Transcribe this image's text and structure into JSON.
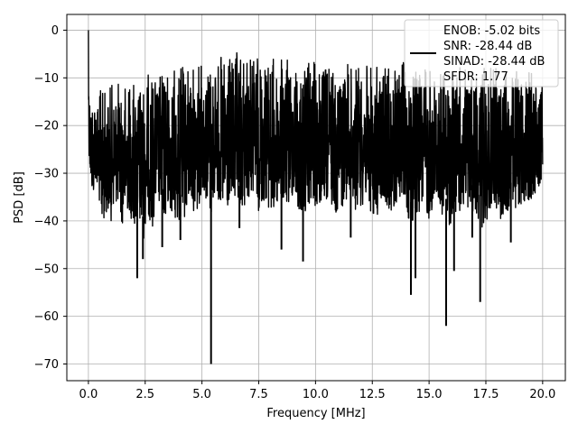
{
  "chart_data": {
    "type": "line",
    "title": "",
    "xlabel": "Frequency [MHz]",
    "ylabel": "PSD [dB]",
    "xlim": [
      -0.95,
      21.0
    ],
    "ylim": [
      -73.5,
      3.3
    ],
    "x_ticks": [
      0.0,
      2.5,
      5.0,
      7.5,
      10.0,
      12.5,
      15.0,
      17.5,
      20.0
    ],
    "x_tick_labels": [
      "0.0",
      "2.5",
      "5.0",
      "7.5",
      "10.0",
      "12.5",
      "15.0",
      "17.5",
      "20.0"
    ],
    "y_ticks": [
      0,
      -10,
      -20,
      -30,
      -40,
      -50,
      -60,
      -70
    ],
    "y_tick_labels": [
      "0",
      "−10",
      "−20",
      "−30",
      "−40",
      "−50",
      "−60",
      "−70"
    ],
    "grid": true,
    "legend_position": "top-right",
    "legend": [
      "ENOB: -5.02 bits",
      "SNR: -28.44 dB",
      "SINAD: -28.44 dB",
      "SFDR: 1.77"
    ],
    "series": [
      {
        "color": "#000000",
        "x": [
          0.0,
          0.02,
          0.05,
          0.1,
          0.2,
          0.3,
          0.4,
          0.5,
          0.6,
          0.8,
          1.0,
          1.2,
          1.5,
          1.8,
          2.0,
          2.2,
          2.4,
          2.6,
          2.8,
          3.0,
          3.3,
          3.6,
          3.9,
          4.2,
          4.5,
          4.8,
          5.0,
          5.2,
          5.4,
          5.6,
          5.8,
          6.0,
          6.3,
          6.6,
          6.9,
          7.2,
          7.5,
          7.8,
          8.1,
          8.4,
          8.7,
          9.0,
          9.4,
          9.8,
          10.2,
          10.6,
          11.0,
          11.4,
          11.8,
          12.2,
          12.6,
          13.0,
          13.4,
          13.8,
          14.2,
          14.6,
          15.0,
          15.4,
          15.8,
          16.2,
          16.6,
          17.0,
          17.4,
          17.8,
          18.2,
          18.6,
          19.0,
          19.4,
          19.8,
          20.0
        ],
        "upper": [
          0.0,
          -9.0,
          -11.0,
          -12.0,
          -13.5,
          -12.0,
          -13.0,
          -12.5,
          -11.5,
          -12.5,
          -11.0,
          -11.0,
          -10.0,
          -10.5,
          -9.5,
          -10.0,
          -10.5,
          -9.0,
          -8.5,
          -9.5,
          -8.0,
          -7.5,
          -8.0,
          -7.0,
          -6.5,
          -7.0,
          -6.5,
          -6.0,
          -5.5,
          -6.0,
          -5.5,
          -5.0,
          -5.0,
          -4.5,
          -3.5,
          -5.0,
          -4.5,
          -5.5,
          -5.0,
          -6.0,
          -6.0,
          -5.5,
          -6.5,
          -6.0,
          -7.0,
          -7.0,
          -6.5,
          -7.0,
          -6.5,
          -7.0,
          -7.5,
          -7.0,
          -7.0,
          -6.5,
          -7.0,
          -7.5,
          -7.0,
          -8.0,
          -7.5,
          -8.0,
          -7.0,
          -8.0,
          -8.0,
          -7.5,
          -8.0,
          -8.0,
          -7.5,
          -8.5,
          -8.0,
          -9.0
        ],
        "lower": [
          -14.0,
          -25.0,
          -28.0,
          -33.0,
          -36.0,
          -31.0,
          -35.0,
          -37.0,
          -42.0,
          -38.0,
          -40.0,
          -36.0,
          -41.0,
          -38.0,
          -42.0,
          -40.0,
          -45.0,
          -38.0,
          -42.0,
          -36.0,
          -40.0,
          -38.0,
          -41.0,
          -40.0,
          -37.0,
          -39.0,
          -33.0,
          -36.0,
          -40.0,
          -33.0,
          -38.0,
          -40.0,
          -36.0,
          -39.0,
          -37.0,
          -35.0,
          -38.0,
          -36.0,
          -40.0,
          -36.0,
          -38.0,
          -35.0,
          -40.0,
          -37.0,
          -38.0,
          -36.0,
          -39.0,
          -35.0,
          -38.0,
          -36.0,
          -40.0,
          -37.0,
          -38.0,
          -35.0,
          -42.0,
          -38.0,
          -40.0,
          -37.0,
          -42.0,
          -38.0,
          -40.0,
          -38.0,
          -42.0,
          -36.0,
          -40.0,
          -38.0,
          -37.0,
          -36.0,
          -34.0,
          -30.0
        ],
        "dips": [
          [
            2.15,
            -52.0
          ],
          [
            2.4,
            -48.0
          ],
          [
            3.25,
            -45.5
          ],
          [
            4.05,
            -44.0
          ],
          [
            5.4,
            -70.0
          ],
          [
            6.65,
            -41.5
          ],
          [
            8.5,
            -46.0
          ],
          [
            9.45,
            -48.5
          ],
          [
            11.55,
            -43.5
          ],
          [
            14.2,
            -55.5
          ],
          [
            14.4,
            -52.0
          ],
          [
            15.75,
            -62.0
          ],
          [
            16.1,
            -50.5
          ],
          [
            16.9,
            -43.5
          ],
          [
            17.25,
            -57.0
          ],
          [
            18.6,
            -44.5
          ]
        ]
      }
    ]
  }
}
